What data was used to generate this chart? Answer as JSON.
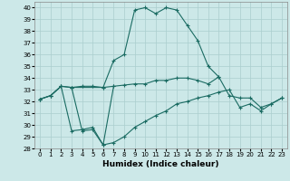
{
  "xlabel": "Humidex (Indice chaleur)",
  "bg_color": "#cce8e8",
  "line_color": "#1a6b62",
  "grid_color": "#aacece",
  "xlim": [
    -0.5,
    23.5
  ],
  "ylim": [
    28,
    40.5
  ],
  "yticks": [
    28,
    29,
    30,
    31,
    32,
    33,
    34,
    35,
    36,
    37,
    38,
    39,
    40
  ],
  "xticks": [
    0,
    1,
    2,
    3,
    4,
    5,
    6,
    7,
    8,
    9,
    10,
    11,
    12,
    13,
    14,
    15,
    16,
    17,
    18,
    19,
    20,
    21,
    22,
    23
  ],
  "lines": [
    {
      "x": [
        0,
        1,
        2,
        3,
        4,
        5,
        6,
        7,
        8,
        9,
        10,
        11,
        12,
        13,
        14,
        15,
        16,
        17
      ],
      "y": [
        32.2,
        32.5,
        33.3,
        33.2,
        33.3,
        33.3,
        33.2,
        35.5,
        36.0,
        39.8,
        40.0,
        39.5,
        40.0,
        39.8,
        38.5,
        37.2,
        35.0,
        34.1
      ]
    },
    {
      "x": [
        0,
        1,
        2,
        3,
        6,
        7,
        8,
        9,
        10,
        11,
        12,
        13,
        14,
        15,
        16,
        17,
        18,
        19,
        20,
        21,
        22,
        23
      ],
      "y": [
        32.2,
        32.5,
        33.3,
        33.2,
        33.2,
        33.3,
        33.4,
        33.5,
        33.5,
        33.8,
        33.8,
        34.0,
        34.0,
        33.8,
        33.5,
        34.1,
        32.5,
        32.3,
        32.3,
        31.5,
        31.8,
        32.3
      ]
    },
    {
      "x": [
        0,
        1,
        2,
        3,
        4,
        5,
        6,
        7,
        8,
        9,
        10,
        11,
        12,
        13,
        14,
        15,
        16,
        17,
        18,
        19,
        20,
        21,
        22,
        23
      ],
      "y": [
        32.2,
        32.5,
        33.3,
        29.5,
        29.6,
        29.8,
        28.3,
        28.5,
        29.0,
        29.8,
        30.3,
        30.8,
        31.2,
        31.8,
        32.0,
        32.3,
        32.5,
        32.8,
        33.0,
        31.5,
        31.8,
        31.2,
        31.8,
        32.3
      ]
    },
    {
      "x": [
        3,
        4,
        5,
        6,
        7
      ],
      "y": [
        33.2,
        29.5,
        29.6,
        28.3,
        33.3
      ]
    }
  ]
}
